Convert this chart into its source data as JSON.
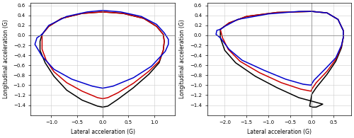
{
  "left": {
    "xlim": [
      -1.4,
      1.4
    ],
    "ylim": [
      -1.6,
      0.65
    ],
    "xticks": [
      -1.0,
      -0.5,
      0.0,
      0.5,
      1.0
    ],
    "yticks": [
      -1.4,
      -1.2,
      -1.0,
      -0.8,
      -0.6,
      -0.4,
      -0.2,
      0.0,
      0.2,
      0.4,
      0.6
    ],
    "xlabel": "Lateral acceleration (G)",
    "ylabel": "Longitudinal acceleration (G)",
    "curves": {
      "black": [
        [
          -1.18,
          0.02
        ],
        [
          -1.05,
          0.18
        ],
        [
          -0.8,
          0.34
        ],
        [
          -0.4,
          0.44
        ],
        [
          0.0,
          0.47
        ],
        [
          0.4,
          0.44
        ],
        [
          0.8,
          0.34
        ],
        [
          1.05,
          0.18
        ],
        [
          1.18,
          0.02
        ],
        [
          1.2,
          -0.12
        ],
        [
          1.18,
          -0.3
        ],
        [
          1.1,
          -0.55
        ],
        [
          0.9,
          -0.78
        ],
        [
          0.6,
          -1.05
        ],
        [
          0.3,
          -1.28
        ],
        [
          0.1,
          -1.42
        ],
        [
          0.0,
          -1.44
        ],
        [
          -0.1,
          -1.42
        ],
        [
          -0.4,
          -1.3
        ],
        [
          -0.7,
          -1.1
        ],
        [
          -0.95,
          -0.82
        ],
        [
          -1.12,
          -0.55
        ],
        [
          -1.22,
          -0.3
        ],
        [
          -1.22,
          -0.12
        ],
        [
          -1.18,
          0.02
        ]
      ],
      "red": [
        [
          -1.18,
          0.02
        ],
        [
          -1.05,
          0.18
        ],
        [
          -0.8,
          0.34
        ],
        [
          -0.4,
          0.44
        ],
        [
          0.0,
          0.47
        ],
        [
          0.4,
          0.44
        ],
        [
          0.8,
          0.34
        ],
        [
          1.05,
          0.18
        ],
        [
          1.18,
          0.02
        ],
        [
          1.2,
          -0.12
        ],
        [
          1.18,
          -0.3
        ],
        [
          1.1,
          -0.52
        ],
        [
          0.9,
          -0.72
        ],
        [
          0.6,
          -0.96
        ],
        [
          0.3,
          -1.15
        ],
        [
          0.1,
          -1.25
        ],
        [
          0.0,
          -1.27
        ],
        [
          -0.1,
          -1.25
        ],
        [
          -0.4,
          -1.12
        ],
        [
          -0.7,
          -0.95
        ],
        [
          -0.95,
          -0.73
        ],
        [
          -1.1,
          -0.5
        ],
        [
          -1.18,
          -0.28
        ],
        [
          -1.18,
          -0.12
        ],
        [
          -1.18,
          0.02
        ]
      ],
      "blue": [
        [
          -1.18,
          0.02
        ],
        [
          -1.05,
          0.2
        ],
        [
          -0.7,
          0.38
        ],
        [
          -0.3,
          0.47
        ],
        [
          0.0,
          0.5
        ],
        [
          0.35,
          0.47
        ],
        [
          0.75,
          0.38
        ],
        [
          1.05,
          0.22
        ],
        [
          1.2,
          0.05
        ],
        [
          1.28,
          -0.08
        ],
        [
          1.28,
          -0.18
        ],
        [
          1.22,
          -0.32
        ],
        [
          0.95,
          -0.62
        ],
        [
          0.6,
          -0.85
        ],
        [
          0.2,
          -1.02
        ],
        [
          0.0,
          -1.06
        ],
        [
          -0.2,
          -1.02
        ],
        [
          -0.6,
          -0.88
        ],
        [
          -0.95,
          -0.68
        ],
        [
          -1.18,
          -0.42
        ],
        [
          -1.32,
          -0.18
        ],
        [
          -1.28,
          -0.05
        ],
        [
          -1.18,
          0.02
        ]
      ]
    }
  },
  "right": {
    "xlim": [
      -2.4,
      0.9
    ],
    "ylim": [
      -1.6,
      0.65
    ],
    "xticks": [
      -2.0,
      -1.5,
      -1.0,
      -0.5,
      0.0,
      0.5
    ],
    "yticks": [
      -1.4,
      -1.2,
      -1.0,
      -0.8,
      -0.6,
      -0.4,
      -0.2,
      0.0,
      0.2,
      0.4,
      0.6
    ],
    "xlabel": "Lateral acceleration (G)",
    "ylabel": "Longitudinal acceleration (G)",
    "curves": {
      "black": [
        [
          -2.1,
          0.12
        ],
        [
          -1.9,
          0.25
        ],
        [
          -1.5,
          0.38
        ],
        [
          -0.8,
          0.46
        ],
        [
          0.0,
          0.48
        ],
        [
          0.35,
          0.45
        ],
        [
          0.6,
          0.32
        ],
        [
          0.72,
          0.1
        ],
        [
          0.72,
          -0.05
        ],
        [
          0.68,
          -0.25
        ],
        [
          0.55,
          -0.52
        ],
        [
          0.35,
          -0.78
        ],
        [
          0.1,
          -1.05
        ],
        [
          0.0,
          -1.18
        ],
        [
          -0.05,
          -1.42
        ],
        [
          0.02,
          -1.44
        ],
        [
          0.1,
          -1.44
        ],
        [
          0.25,
          -1.38
        ],
        [
          -0.3,
          -1.25
        ],
        [
          -0.8,
          -1.05
        ],
        [
          -1.3,
          -0.82
        ],
        [
          -1.75,
          -0.55
        ],
        [
          -2.0,
          -0.3
        ],
        [
          -2.1,
          -0.05
        ],
        [
          -2.1,
          0.12
        ]
      ],
      "red": [
        [
          -2.1,
          0.12
        ],
        [
          -1.9,
          0.25
        ],
        [
          -1.5,
          0.38
        ],
        [
          -0.8,
          0.46
        ],
        [
          0.0,
          0.48
        ],
        [
          0.35,
          0.45
        ],
        [
          0.6,
          0.32
        ],
        [
          0.72,
          0.1
        ],
        [
          0.72,
          -0.05
        ],
        [
          0.68,
          -0.22
        ],
        [
          0.55,
          -0.48
        ],
        [
          0.35,
          -0.72
        ],
        [
          0.1,
          -0.95
        ],
        [
          0.0,
          -1.08
        ],
        [
          -0.02,
          -1.12
        ],
        [
          -0.25,
          -1.08
        ],
        [
          -0.7,
          -0.95
        ],
        [
          -1.2,
          -0.75
        ],
        [
          -1.65,
          -0.52
        ],
        [
          -1.92,
          -0.28
        ],
        [
          -2.05,
          -0.05
        ],
        [
          -2.1,
          0.12
        ]
      ],
      "blue": [
        [
          -2.1,
          0.12
        ],
        [
          -2.0,
          0.18
        ],
        [
          -1.7,
          0.32
        ],
        [
          -1.0,
          0.43
        ],
        [
          -0.3,
          0.48
        ],
        [
          0.0,
          0.48
        ],
        [
          0.35,
          0.45
        ],
        [
          0.6,
          0.32
        ],
        [
          0.72,
          0.1
        ],
        [
          0.72,
          -0.05
        ],
        [
          0.68,
          -0.2
        ],
        [
          0.55,
          -0.45
        ],
        [
          0.3,
          -0.68
        ],
        [
          0.05,
          -0.9
        ],
        [
          -0.02,
          -1.0
        ],
        [
          -0.2,
          -0.98
        ],
        [
          -0.6,
          -0.88
        ],
        [
          -1.1,
          -0.7
        ],
        [
          -1.6,
          -0.5
        ],
        [
          -1.9,
          -0.28
        ],
        [
          -2.1,
          -0.05
        ],
        [
          -2.2,
          0.02
        ],
        [
          -2.18,
          0.1
        ],
        [
          -2.1,
          0.12
        ]
      ]
    }
  },
  "colors": {
    "black": "#000000",
    "red": "#cc0000",
    "blue": "#0000cc"
  },
  "linewidth": 1.1,
  "background_color": "#ffffff",
  "grid_color": "#cccccc"
}
